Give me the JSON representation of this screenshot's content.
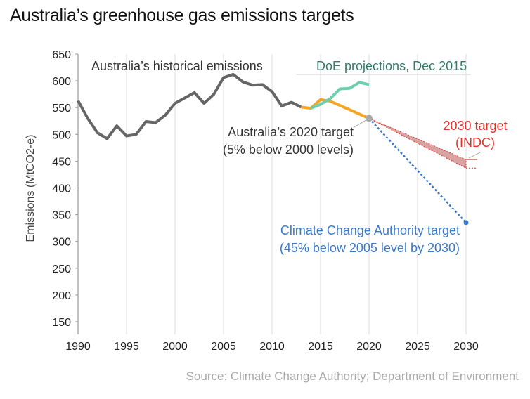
{
  "chart_data": {
    "type": "line",
    "title": "Australia’s greenhouse gas emissions targets",
    "xlabel": "",
    "ylabel": "Emissions (MtCO2-e)",
    "xlim": [
      1990,
      2030
    ],
    "ylim": [
      150,
      650
    ],
    "xticks": [
      1990,
      1995,
      2000,
      2005,
      2010,
      2015,
      2020,
      2025,
      2030
    ],
    "yticks": [
      150,
      200,
      250,
      300,
      350,
      400,
      450,
      500,
      550,
      600,
      650
    ],
    "grid": "vertical",
    "series": [
      {
        "name": "Australia’s historical emissions",
        "color": "#666666",
        "x": [
          1990,
          1991,
          1992,
          1993,
          1994,
          1995,
          1996,
          1997,
          1998,
          1999,
          2000,
          2001,
          2002,
          2003,
          2004,
          2005,
          2006,
          2007,
          2008,
          2009,
          2010,
          2011,
          2012,
          2013
        ],
        "y": [
          563,
          530,
          503,
          492,
          516,
          497,
          500,
          524,
          522,
          536,
          558,
          568,
          578,
          558,
          575,
          606,
          612,
          598,
          592,
          593,
          580,
          553,
          560,
          551
        ]
      },
      {
        "name": "Trajectory to 2020 target",
        "color": "#F5A623",
        "x": [
          2013,
          2014,
          2015,
          2016,
          2020
        ],
        "y": [
          551,
          549,
          565,
          562,
          530
        ]
      },
      {
        "name": "DoE projections, Dec 2015",
        "color": "#6CCFB0",
        "x": [
          2014,
          2015,
          2016,
          2017,
          2018,
          2019,
          2020
        ],
        "y": [
          549,
          556,
          567,
          585,
          586,
          597,
          593
        ]
      },
      {
        "name": "Climate Change Authority target",
        "color": "#3A78C9",
        "x": [
          2020,
          2030
        ],
        "y": [
          530,
          335
        ]
      },
      {
        "name": "2030 target (INDC)",
        "color": "#E0322C",
        "x": [
          2020,
          2030
        ],
        "y_low": [
          530,
          437
        ],
        "y_high": [
          530,
          453
        ]
      }
    ],
    "annotations": {
      "historical": "Australia’s historical emissions",
      "doe": "DoE projections, Dec 2015",
      "target2020_line1": "Australia’s 2020 target",
      "target2020_line2": "(5% below 2000 levels)",
      "indc_line1": "2030 target",
      "indc_line2": "(INDC)",
      "cca_line1": "Climate Change Authority target",
      "cca_line2": "(45% below 2005 level by 2030)"
    },
    "source": "Source: Climate Change Authority; Department of Environment"
  }
}
